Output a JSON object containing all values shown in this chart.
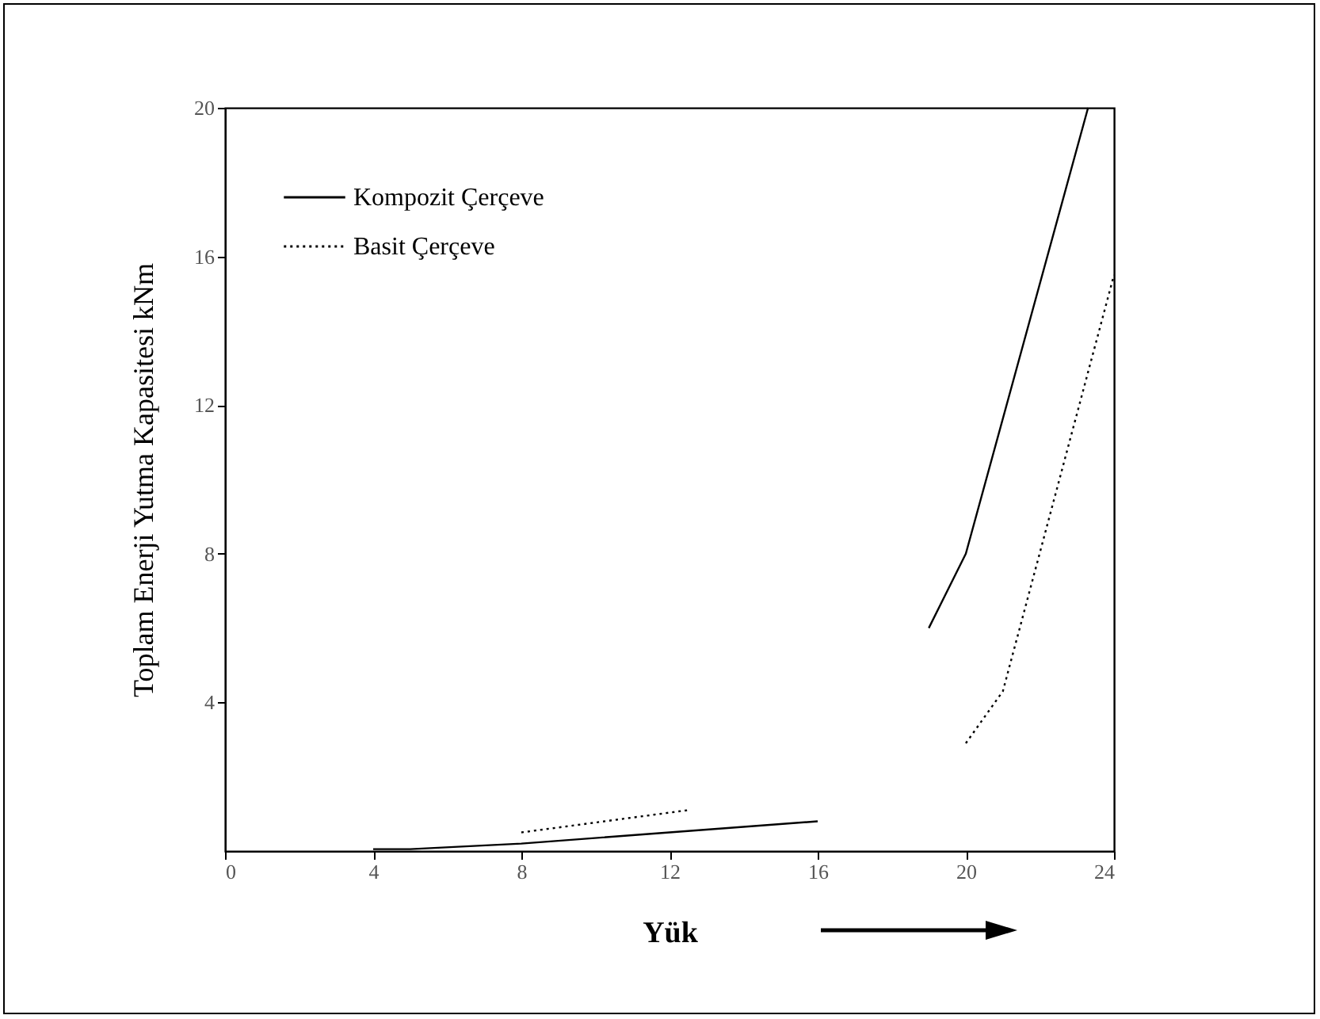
{
  "chart_data": {
    "type": "line",
    "xlabel": "Yük",
    "ylabel": "Toplam Enerji Yutma Kapasitesi  kNm",
    "xlim": [
      0,
      24
    ],
    "xticks": [
      0,
      4,
      8,
      12,
      16,
      20,
      24
    ],
    "ylim": [
      0,
      20
    ],
    "yticks": [
      4,
      8,
      12,
      16,
      20
    ],
    "series": [
      {
        "name": "Kompozit Çerçeve",
        "color": "#000000",
        "line_style": "solid",
        "x": [
          4,
          5,
          8,
          12,
          16,
          17.5,
          19,
          20,
          23.3
        ],
        "values": [
          0.05,
          0.05,
          0.2,
          0.5,
          0.8,
          null,
          6,
          8,
          20
        ]
      },
      {
        "name": "Basit Çerçeve",
        "color": "#000000",
        "line_style": "dotted",
        "x": [
          8,
          12.5,
          16,
          20,
          21,
          24
        ],
        "values": [
          0.5,
          1.1,
          null,
          2.9,
          4.3,
          15.5
        ]
      }
    ],
    "grid": false,
    "legend": "top left",
    "marker": "none"
  }
}
